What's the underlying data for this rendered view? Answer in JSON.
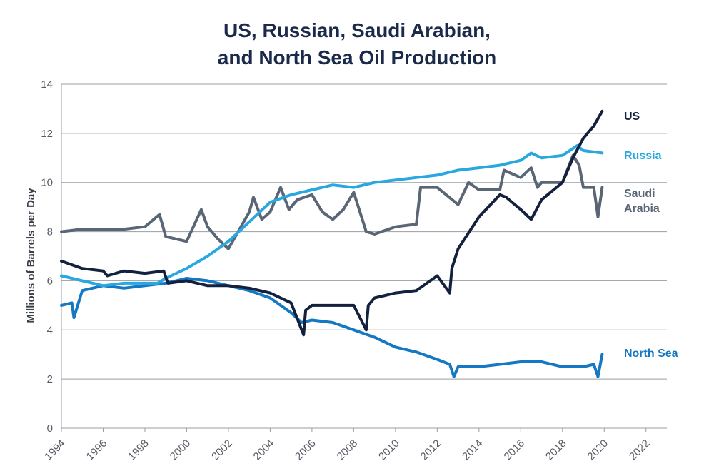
{
  "title_line1": "US, Russian, Saudi Arabian,",
  "title_line2": "and North Sea Oil Production",
  "chart_data": {
    "type": "line",
    "ylabel": "Millions of Barrels per Day",
    "xlabel": "",
    "xlim": [
      1994,
      2023
    ],
    "ylim": [
      0,
      14
    ],
    "yticks": [
      0,
      2,
      4,
      6,
      8,
      10,
      12,
      14
    ],
    "xticks": [
      "1994",
      "1996",
      "1998",
      "2000",
      "2002",
      "2004",
      "2006",
      "2008",
      "2010",
      "2012",
      "2014",
      "2016",
      "2018",
      "2020",
      "2022"
    ],
    "grid": true,
    "series": [
      {
        "name": "US",
        "color": "#13213f",
        "x": [
          1994.0,
          1995.0,
          1996.0,
          1996.2,
          1997.0,
          1998.0,
          1998.9,
          1999.1,
          2000.0,
          2001.0,
          2002.0,
          2003.0,
          2004.0,
          2005.0,
          2005.6,
          2005.7,
          2006.0,
          2007.0,
          2008.0,
          2008.6,
          2008.7,
          2009.0,
          2010.0,
          2011.0,
          2012.0,
          2012.6,
          2012.7,
          2013.0,
          2014.0,
          2015.0,
          2015.3,
          2016.0,
          2016.5,
          2017.0,
          2018.0,
          2018.5,
          2019.0,
          2019.5,
          2019.9
        ],
        "values": [
          6.8,
          6.5,
          6.4,
          6.2,
          6.4,
          6.3,
          6.4,
          5.9,
          6.0,
          5.8,
          5.8,
          5.7,
          5.5,
          5.1,
          3.8,
          4.8,
          5.0,
          5.0,
          5.0,
          4.0,
          5.0,
          5.3,
          5.5,
          5.6,
          6.2,
          5.5,
          6.5,
          7.3,
          8.6,
          9.5,
          9.4,
          8.9,
          8.5,
          9.3,
          10.0,
          11.0,
          11.8,
          12.3,
          12.9
        ]
      },
      {
        "name": "Russia",
        "color": "#29a8e0",
        "x": [
          1994.0,
          1995.0,
          1996.0,
          1997.0,
          1998.0,
          1998.6,
          1999.0,
          2000.0,
          2001.0,
          2002.0,
          2003.0,
          2004.0,
          2005.0,
          2006.0,
          2007.0,
          2008.0,
          2009.0,
          2010.0,
          2011.0,
          2012.0,
          2013.0,
          2014.0,
          2015.0,
          2016.0,
          2016.5,
          2017.0,
          2018.0,
          2018.7,
          2019.0,
          2019.9
        ],
        "values": [
          6.2,
          6.0,
          5.8,
          5.9,
          5.9,
          5.9,
          6.1,
          6.5,
          7.0,
          7.6,
          8.4,
          9.2,
          9.5,
          9.7,
          9.9,
          9.8,
          10.0,
          10.1,
          10.2,
          10.3,
          10.5,
          10.6,
          10.7,
          10.9,
          11.2,
          11.0,
          11.1,
          11.5,
          11.3,
          11.2
        ]
      },
      {
        "name": "Saudi Arabia",
        "label_line1": "Saudi",
        "label_line2": "Arabia",
        "color": "#5a6675",
        "x": [
          1994.0,
          1995.0,
          1996.0,
          1997.0,
          1998.0,
          1998.7,
          1999.0,
          2000.0,
          2000.7,
          2001.0,
          2001.5,
          2002.0,
          2003.0,
          2003.2,
          2003.6,
          2004.0,
          2004.5,
          2004.9,
          2005.3,
          2006.0,
          2006.5,
          2007.0,
          2007.5,
          2008.0,
          2008.6,
          2009.0,
          2010.0,
          2011.0,
          2011.2,
          2012.0,
          2013.0,
          2013.5,
          2014.0,
          2015.0,
          2015.2,
          2016.0,
          2016.5,
          2016.8,
          2017.0,
          2018.0,
          2018.5,
          2018.8,
          2019.0,
          2019.5,
          2019.7,
          2019.9
        ],
        "values": [
          8.0,
          8.1,
          8.1,
          8.1,
          8.2,
          8.7,
          7.8,
          7.6,
          8.9,
          8.2,
          7.7,
          7.3,
          8.8,
          9.4,
          8.5,
          8.8,
          9.8,
          8.9,
          9.3,
          9.5,
          8.8,
          8.5,
          8.9,
          9.6,
          8.0,
          7.9,
          8.2,
          8.3,
          9.8,
          9.8,
          9.1,
          10.0,
          9.7,
          9.7,
          10.5,
          10.2,
          10.6,
          9.8,
          10.0,
          10.0,
          11.1,
          10.7,
          9.8,
          9.8,
          8.6,
          9.8
        ]
      },
      {
        "name": "North Sea",
        "color": "#1478c2",
        "x": [
          1994.0,
          1994.5,
          1994.6,
          1995.0,
          1996.0,
          1997.0,
          1998.0,
          1999.0,
          2000.0,
          2001.0,
          2002.0,
          2003.0,
          2004.0,
          2005.0,
          2005.5,
          2006.0,
          2007.0,
          2008.0,
          2009.0,
          2010.0,
          2011.0,
          2012.0,
          2012.6,
          2012.8,
          2013.0,
          2014.0,
          2015.0,
          2016.0,
          2017.0,
          2018.0,
          2019.0,
          2019.5,
          2019.7,
          2019.9
        ],
        "values": [
          5.0,
          5.1,
          4.5,
          5.6,
          5.8,
          5.7,
          5.8,
          5.9,
          6.1,
          6.0,
          5.8,
          5.6,
          5.3,
          4.7,
          4.3,
          4.4,
          4.3,
          4.0,
          3.7,
          3.3,
          3.1,
          2.8,
          2.6,
          2.1,
          2.5,
          2.5,
          2.6,
          2.7,
          2.7,
          2.5,
          2.5,
          2.6,
          2.1,
          3.0
        ]
      }
    ],
    "annotations": [
      "US",
      "Russia",
      "Saudi Arabia",
      "North Sea"
    ]
  }
}
